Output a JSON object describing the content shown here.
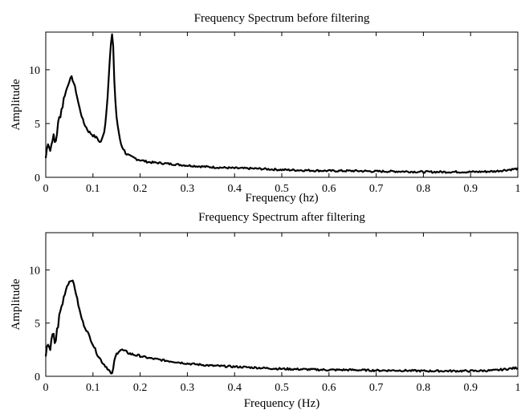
{
  "chart_data": [
    {
      "type": "line",
      "title": "Frequency Spectrum before filtering",
      "xlabel": "Frequency (hz)",
      "ylabel": "Amplitude",
      "xlim": [
        0,
        1
      ],
      "ylim": [
        0,
        13.5
      ],
      "xticks": [
        0,
        0.1,
        0.2,
        0.3,
        0.4,
        0.5,
        0.6,
        0.7,
        0.8,
        0.9,
        1
      ],
      "xtick_labels": [
        "0",
        "0.1",
        "0.2",
        "0.3",
        "0.4",
        "0.5",
        "0.6",
        "0.7",
        "0.8",
        "0.9",
        "1"
      ],
      "yticks": [
        0,
        5,
        10
      ],
      "ytick_labels": [
        "0",
        "5",
        "10"
      ],
      "grid": false,
      "color": "#000000",
      "series": [
        {
          "x": [
            0,
            0.005,
            0.01,
            0.015,
            0.02,
            0.025,
            0.03,
            0.035,
            0.04,
            0.045,
            0.05,
            0.055,
            0.06,
            0.065,
            0.07,
            0.075,
            0.08,
            0.09,
            0.1,
            0.11,
            0.115,
            0.12,
            0.125,
            0.13,
            0.135,
            0.14,
            0.143,
            0.146,
            0.15,
            0.155,
            0.16,
            0.17,
            0.18,
            0.2,
            0.22,
            0.25,
            0.3,
            0.35,
            0.4,
            0.45,
            0.5,
            0.55,
            0.6,
            0.65,
            0.7,
            0.75,
            0.8,
            0.85,
            0.9,
            0.95,
            1.0
          ],
          "y": [
            1.8,
            3.5,
            2.4,
            4.0,
            3.0,
            4.6,
            5.8,
            6.6,
            7.6,
            8.3,
            9.0,
            9.3,
            8.7,
            7.8,
            6.7,
            5.9,
            5.1,
            4.3,
            3.9,
            3.6,
            3.2,
            3.6,
            4.5,
            6.8,
            10.6,
            13.5,
            12.0,
            8.0,
            5.6,
            4.0,
            3.0,
            2.2,
            1.9,
            1.6,
            1.4,
            1.3,
            1.1,
            0.95,
            0.85,
            0.8,
            0.7,
            0.65,
            0.6,
            0.6,
            0.55,
            0.55,
            0.5,
            0.5,
            0.5,
            0.55,
            0.8
          ]
        }
      ]
    },
    {
      "type": "line",
      "title": "Frequency Spectrum after filtering",
      "xlabel": "Frequency (Hz)",
      "ylabel": "Amplitude",
      "xlim": [
        0,
        1
      ],
      "ylim": [
        0,
        13.5
      ],
      "xticks": [
        0,
        0.1,
        0.2,
        0.3,
        0.4,
        0.5,
        0.6,
        0.7,
        0.8,
        0.9,
        1
      ],
      "xtick_labels": [
        "0",
        "0.1",
        "0.2",
        "0.3",
        "0.4",
        "0.5",
        "0.6",
        "0.7",
        "0.8",
        "0.9",
        "1"
      ],
      "yticks": [
        0,
        5,
        10
      ],
      "ytick_labels": [
        "0",
        "5",
        "10"
      ],
      "grid": false,
      "color": "#000000",
      "series": [
        {
          "x": [
            0,
            0.005,
            0.01,
            0.015,
            0.02,
            0.025,
            0.03,
            0.035,
            0.04,
            0.045,
            0.05,
            0.055,
            0.06,
            0.065,
            0.07,
            0.075,
            0.08,
            0.09,
            0.1,
            0.11,
            0.12,
            0.13,
            0.135,
            0.14,
            0.143,
            0.146,
            0.15,
            0.155,
            0.16,
            0.17,
            0.18,
            0.2,
            0.22,
            0.25,
            0.3,
            0.35,
            0.4,
            0.45,
            0.5,
            0.55,
            0.6,
            0.65,
            0.7,
            0.75,
            0.8,
            0.85,
            0.9,
            0.95,
            1.0
          ],
          "y": [
            1.6,
            3.3,
            2.5,
            4.0,
            3.0,
            4.6,
            5.9,
            6.8,
            7.7,
            8.5,
            8.9,
            9.1,
            8.6,
            7.6,
            6.5,
            5.6,
            4.9,
            4.0,
            3.0,
            2.0,
            1.3,
            0.8,
            0.5,
            0.05,
            0.8,
            1.6,
            2.1,
            2.4,
            2.5,
            2.3,
            2.1,
            1.9,
            1.7,
            1.5,
            1.2,
            1.0,
            0.9,
            0.8,
            0.7,
            0.65,
            0.6,
            0.6,
            0.55,
            0.55,
            0.5,
            0.5,
            0.5,
            0.55,
            0.8
          ]
        }
      ]
    }
  ]
}
